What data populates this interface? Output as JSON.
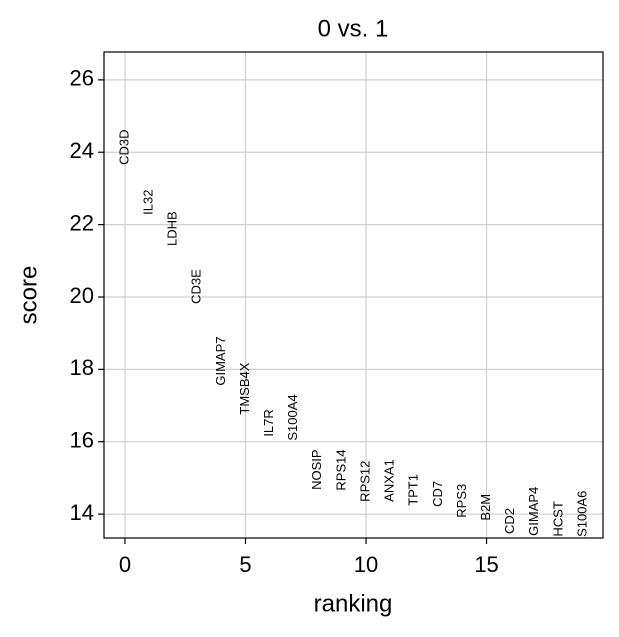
{
  "chart_data": {
    "type": "ranking",
    "title": "0 vs. 1",
    "x_label": "ranking",
    "y_label": "score",
    "categories": [
      "CD3D",
      "IL32",
      "LDHB",
      "CD3E",
      "GIMAP7",
      "TMSB4X",
      "IL7R",
      "S100A4",
      "NOSIP",
      "RPS14",
      "RPS12",
      "ANXA1",
      "TPT1",
      "CD7",
      "RPS3",
      "B2M",
      "CD2",
      "GIMAP4",
      "HCST",
      "S100A6"
    ],
    "x": [
      0,
      1,
      2,
      3,
      4,
      5,
      6,
      7,
      8,
      9,
      10,
      11,
      12,
      13,
      14,
      15,
      16,
      17,
      18,
      19
    ],
    "values": [
      23.65,
      22.27,
      21.41,
      19.81,
      17.55,
      16.75,
      16.14,
      16.03,
      14.67,
      14.65,
      14.34,
      14.34,
      14.23,
      14.2,
      13.9,
      13.82,
      13.45,
      13.4,
      13.38,
      13.37
    ],
    "xlim": [
      -0.87,
      19.83
    ],
    "ylim": [
      13.34,
      26.77
    ],
    "xticks": [
      0,
      5,
      10,
      15
    ],
    "yticks": [
      14,
      16,
      18,
      20,
      22,
      24,
      26
    ],
    "grid": true
  }
}
